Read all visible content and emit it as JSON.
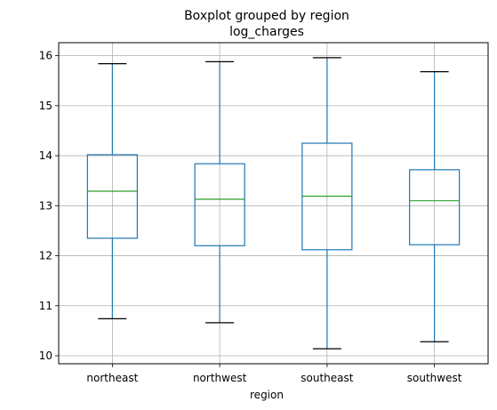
{
  "chart_data": {
    "type": "boxplot",
    "title": "Boxplot grouped by region",
    "subtitle": "log_charges",
    "xlabel": "region",
    "ylabel": "",
    "categories": [
      "northeast",
      "northwest",
      "southeast",
      "southwest"
    ],
    "boxes": [
      {
        "category": "northeast",
        "whisker_low": 10.74,
        "q1": 12.35,
        "median": 13.29,
        "q3": 14.02,
        "whisker_high": 15.84
      },
      {
        "category": "northwest",
        "whisker_low": 10.66,
        "q1": 12.2,
        "median": 13.13,
        "q3": 13.84,
        "whisker_high": 15.88
      },
      {
        "category": "southeast",
        "whisker_low": 10.14,
        "q1": 12.12,
        "median": 13.19,
        "q3": 14.25,
        "whisker_high": 15.96
      },
      {
        "category": "southwest",
        "whisker_low": 10.28,
        "q1": 12.22,
        "median": 13.1,
        "q3": 13.72,
        "whisker_high": 15.68
      }
    ],
    "yticks": [
      10,
      11,
      12,
      13,
      14,
      15,
      16
    ],
    "ylim": [
      9.84,
      16.26
    ],
    "grid": true,
    "colors": {
      "box": "#1f77b4",
      "median": "#2ca02c",
      "caps": "#000000",
      "grid": "#b0b0b0"
    }
  }
}
